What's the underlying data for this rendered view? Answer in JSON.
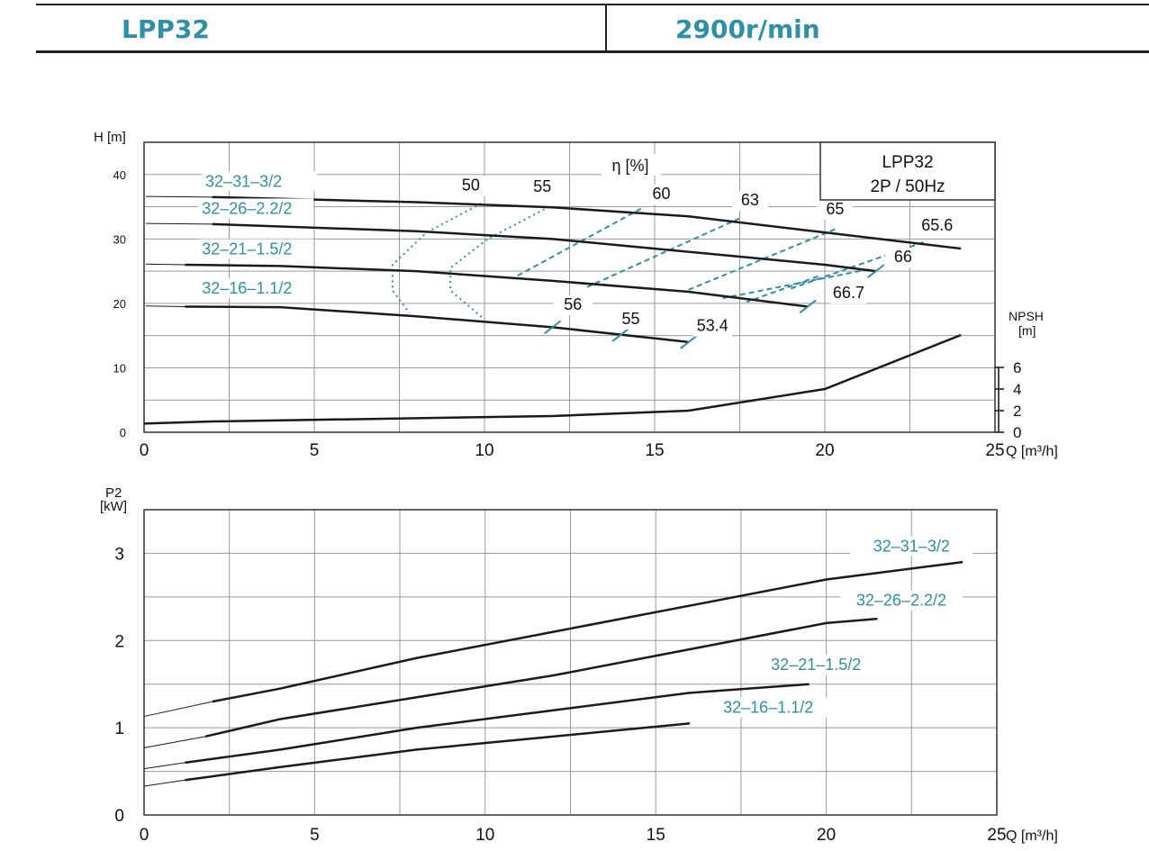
{
  "header": {
    "model": "LPP32",
    "speed": "2900r/min"
  },
  "colors": {
    "accent": "#2e8fa6",
    "curve": "#1a1a1a",
    "grid": "#9a9a9a"
  },
  "chart_data": [
    {
      "type": "line",
      "title": "",
      "legend_box": [
        "LPP32",
        "2P / 50Hz"
      ],
      "xlabel": "Q [m³/h]",
      "ylabel": "H [m]",
      "eff_label": "η  [%]",
      "npsh_label": [
        "NPSH",
        "[m]"
      ],
      "xlim": [
        0,
        25
      ],
      "ylim": [
        0,
        45
      ],
      "x_ticks": [
        0,
        5,
        10,
        15,
        20,
        25
      ],
      "y_ticks": [
        0,
        10,
        20,
        30,
        40
      ],
      "npsh_ticks": [
        0,
        2,
        4,
        6
      ],
      "grid": true,
      "series": [
        {
          "name": "32–31–3/2",
          "x": [
            2,
            8,
            12,
            16,
            20,
            24
          ],
          "y": [
            36.5,
            35.7,
            34.9,
            33.5,
            31,
            28.5
          ]
        },
        {
          "name": "32–26–2.2/2",
          "x": [
            2,
            8,
            12,
            16,
            20,
            21.5
          ],
          "y": [
            32.3,
            31.2,
            30,
            28,
            26,
            25
          ]
        },
        {
          "name": "32–21–1.5/2",
          "x": [
            1.2,
            4,
            8,
            12,
            16,
            19.5
          ],
          "y": [
            26,
            25.8,
            25,
            23.5,
            21.8,
            19.5
          ]
        },
        {
          "name": "32–16–1.1/2",
          "x": [
            1.2,
            4,
            8,
            12,
            16
          ],
          "y": [
            19.5,
            19.4,
            18,
            16.3,
            14
          ]
        }
      ],
      "npsh_curve": {
        "x": [
          0,
          2,
          12,
          16,
          20,
          24
        ],
        "y": [
          0.8,
          1,
          1.5,
          2,
          4,
          9
        ]
      },
      "efficiency_lines": [
        {
          "label": "50",
          "x": [
            9.9,
            8.3,
            7.3,
            7.3,
            7.8
          ],
          "y": [
            35.5,
            31,
            26,
            22,
            18.5
          ],
          "lx": 9.6,
          "ly": 37.5
        },
        {
          "label": "55",
          "x": [
            11.9,
            10.1,
            9.0,
            9.0,
            10.0
          ],
          "y": [
            35,
            30,
            25.5,
            22,
            17.5
          ],
          "lx": 11.7,
          "ly": 37.3
        },
        {
          "label": "60",
          "x": [
            14.6,
            10.8
          ],
          "y": [
            34.7,
            23.8
          ],
          "lx": 15.2,
          "ly": 36.2
        },
        {
          "label": "63",
          "x": [
            17.5,
            13
          ],
          "y": [
            33.2,
            22.5
          ],
          "lx": 17.8,
          "ly": 35.2
        },
        {
          "label": "65",
          "x": [
            20.3,
            15.9
          ],
          "y": [
            31.5,
            21.9
          ],
          "lx": 20.3,
          "ly": 33.8
        },
        {
          "label": "65.6",
          "x": [
            22.9,
            19
          ],
          "y": [
            29.5,
            22.3
          ],
          "lx": 23.3,
          "ly": 31.3
        },
        {
          "label": "66",
          "x": [
            21.3,
            17
          ],
          "y": [
            25.3,
            20.8
          ],
          "lx": 22.3,
          "ly": 26.4
        },
        {
          "label": "66.7",
          "x": [
            19.8,
            17.7
          ],
          "y": [
            24.2,
            20.2
          ],
          "lx": 20.7,
          "ly": 20.8
        }
      ],
      "end_markers": [
        {
          "label": "56",
          "x": 12.0,
          "y": 16.3,
          "lx": 12.6,
          "ly": 19
        },
        {
          "label": "55",
          "x": 14.0,
          "y": 15.1,
          "lx": 14.3,
          "ly": 16.8
        },
        {
          "label": "53.4",
          "x": 16.0,
          "y": 14.0,
          "lx": 16.7,
          "ly": 15.7
        },
        {
          "label": "",
          "x": 19.5,
          "y": 19.5
        },
        {
          "label": "",
          "x": 21.5,
          "y": 25.0
        }
      ],
      "series_labels": [
        {
          "text": "32–31–3/2",
          "x": 1.8,
          "y": 38.1
        },
        {
          "text": "32–26–2.2/2",
          "x": 1.7,
          "y": 33.9
        },
        {
          "text": "32–21–1.5/2",
          "x": 1.7,
          "y": 27.6
        },
        {
          "text": "32–16–1.1/2",
          "x": 1.7,
          "y": 21.5
        }
      ]
    },
    {
      "type": "line",
      "title": "",
      "xlabel": "Q [m³/h]",
      "ylabel": [
        "P2",
        "[kW]"
      ],
      "xlim": [
        0,
        25
      ],
      "ylim": [
        0,
        3.5
      ],
      "x_ticks": [
        0,
        5,
        10,
        15,
        20,
        25
      ],
      "y_ticks": [
        0,
        1,
        2,
        3
      ],
      "grid": true,
      "series": [
        {
          "name": "32–31–3/2",
          "x": [
            0,
            2,
            4,
            8,
            12,
            16,
            20,
            24
          ],
          "y": [
            1.13,
            1.3,
            1.45,
            1.8,
            2.1,
            2.4,
            2.7,
            2.9
          ]
        },
        {
          "name": "32–26–2.2/2",
          "x": [
            0,
            1.8,
            4,
            8,
            12,
            16,
            20,
            21.5
          ],
          "y": [
            0.77,
            0.9,
            1.1,
            1.35,
            1.6,
            1.9,
            2.2,
            2.25
          ]
        },
        {
          "name": "32–21–1.5/2",
          "x": [
            0,
            1.2,
            4,
            8,
            12,
            16,
            19.5
          ],
          "y": [
            0.53,
            0.6,
            0.75,
            1.0,
            1.2,
            1.4,
            1.5
          ]
        },
        {
          "name": "32–16–1.1/2",
          "x": [
            0,
            1.2,
            4,
            8,
            12,
            16
          ],
          "y": [
            0.33,
            0.4,
            0.55,
            0.75,
            0.9,
            1.05
          ]
        }
      ],
      "series_labels": [
        {
          "text": "32–31–3/2",
          "x": 22.5,
          "y": 3.02
        },
        {
          "text": "32–26–2.2/2",
          "x": 22.2,
          "y": 2.4
        },
        {
          "text": "32–21–1.5/2",
          "x": 19.7,
          "y": 1.66
        },
        {
          "text": "32–16–1.1/2",
          "x": 18.3,
          "y": 1.17
        }
      ]
    }
  ]
}
